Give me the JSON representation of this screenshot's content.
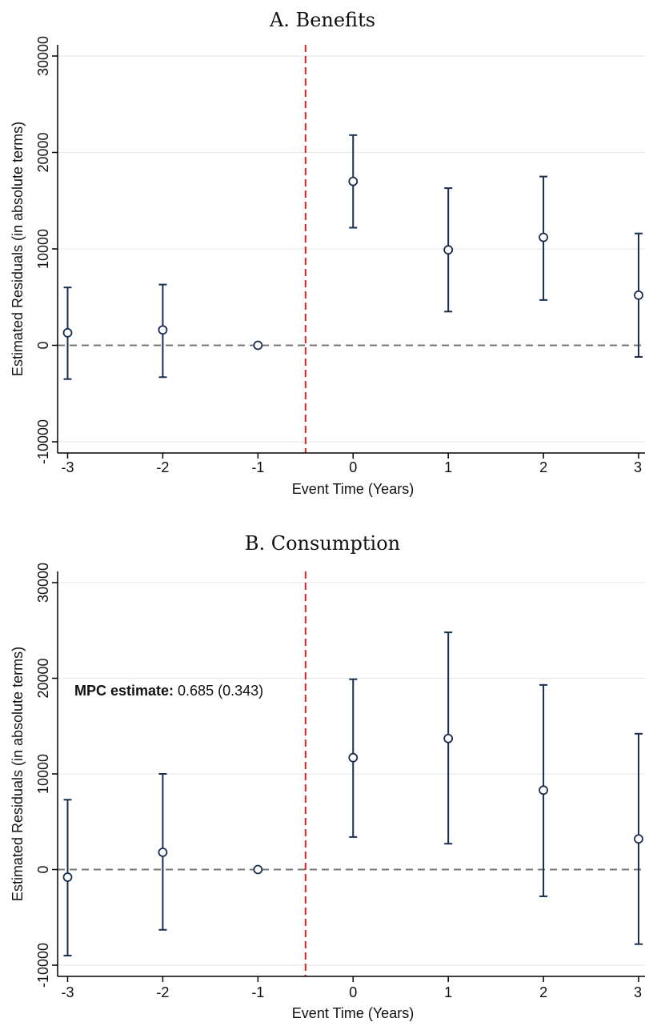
{
  "chart_data": [
    {
      "type": "scatter",
      "title": "A. Benefits",
      "xlabel": "Event Time (Years)",
      "ylabel": "Estimated Residuals (in absolute terms)",
      "xlim": [
        -3,
        3
      ],
      "ylim": [
        -10000,
        30000
      ],
      "xticks": [
        "-3",
        "-2",
        "-1",
        "0",
        "1",
        "2",
        "3"
      ],
      "yticks": [
        "-10000",
        "0",
        "10000",
        "20000",
        "30000"
      ],
      "grid": true,
      "event_line_x": -0.5,
      "zero_line": true,
      "points": [
        {
          "x": -3,
          "y": 1300,
          "lo": -3500,
          "hi": 6000
        },
        {
          "x": -2,
          "y": 1600,
          "lo": -3300,
          "hi": 6300
        },
        {
          "x": -1,
          "y": 0,
          "lo": 0,
          "hi": 0
        },
        {
          "x": 0,
          "y": 17000,
          "lo": 12200,
          "hi": 21800
        },
        {
          "x": 1,
          "y": 9900,
          "lo": 3500,
          "hi": 16300
        },
        {
          "x": 2,
          "y": 11200,
          "lo": 4700,
          "hi": 17500
        },
        {
          "x": 3,
          "y": 5200,
          "lo": -1200,
          "hi": 11600
        }
      ],
      "colors": {
        "marker": "#1a2f4f",
        "event_line": "#e0201b",
        "zero_line": "#777777",
        "grid": "#e6eaee"
      }
    },
    {
      "type": "scatter",
      "title": "B. Consumption",
      "xlabel": "Event Time (Years)",
      "ylabel": "Estimated Residuals (in absolute terms)",
      "xlim": [
        -3,
        3
      ],
      "ylim": [
        -10000,
        30000
      ],
      "xticks": [
        "-3",
        "-2",
        "-1",
        "0",
        "1",
        "2",
        "3"
      ],
      "yticks": [
        "-10000",
        "0",
        "10000",
        "20000",
        "30000"
      ],
      "grid": true,
      "event_line_x": -0.5,
      "zero_line": true,
      "annotation": {
        "label": "MPC estimate:",
        "value": "0.685 (0.343)"
      },
      "points": [
        {
          "x": -3,
          "y": -800,
          "lo": -9000,
          "hi": 7300
        },
        {
          "x": -2,
          "y": 1800,
          "lo": -6300,
          "hi": 10000
        },
        {
          "x": -1,
          "y": 0,
          "lo": 0,
          "hi": 0
        },
        {
          "x": 0,
          "y": 11700,
          "lo": 3400,
          "hi": 19900
        },
        {
          "x": 1,
          "y": 13700,
          "lo": 2700,
          "hi": 24800
        },
        {
          "x": 2,
          "y": 8300,
          "lo": -2800,
          "hi": 19300
        },
        {
          "x": 3,
          "y": 3200,
          "lo": -7800,
          "hi": 14200
        }
      ],
      "colors": {
        "marker": "#1a2f4f",
        "event_line": "#e0201b",
        "zero_line": "#777777",
        "grid": "#e6eaee"
      }
    }
  ]
}
